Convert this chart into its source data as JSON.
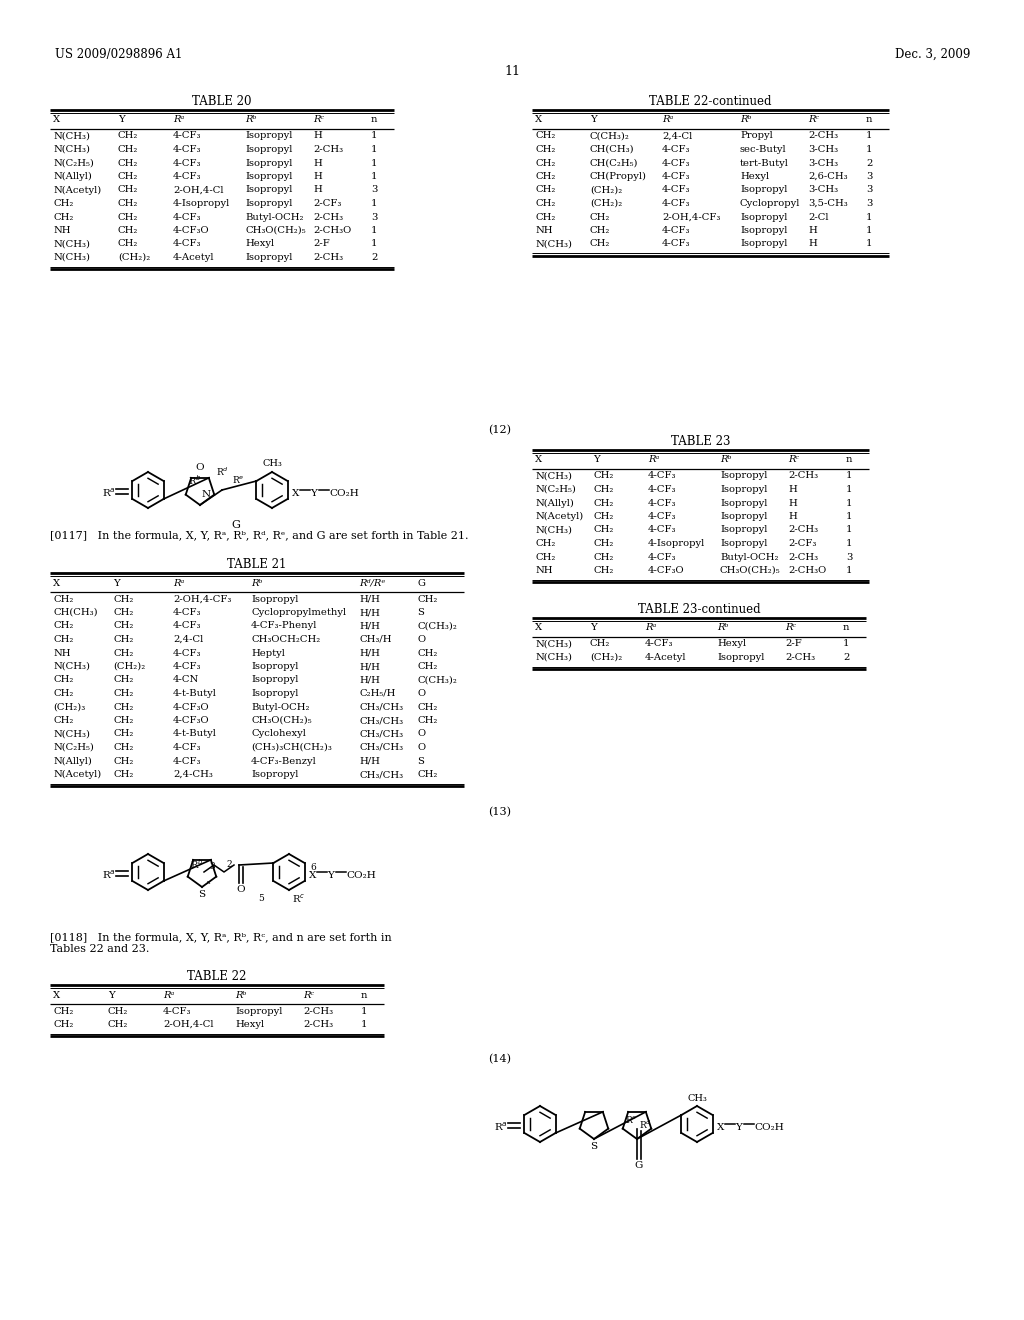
{
  "page_header_left": "US 2009/0298896 A1",
  "page_header_right": "Dec. 3, 2009",
  "page_number": "11",
  "background_color": "#ffffff",
  "table20_title": "TABLE 20",
  "table20_headers": [
    "X",
    "Y",
    "Rᵃ",
    "Rᵇ",
    "Rᶜ",
    "n"
  ],
  "table20_rows": [
    [
      "N(CH₃)",
      "CH₂",
      "4-CF₃",
      "Isopropyl",
      "H",
      "1"
    ],
    [
      "N(CH₃)",
      "CH₂",
      "4-CF₃",
      "Isopropyl",
      "2-CH₃",
      "1"
    ],
    [
      "N(C₂H₅)",
      "CH₂",
      "4-CF₃",
      "Isopropyl",
      "H",
      "1"
    ],
    [
      "N(Allyl)",
      "CH₂",
      "4-CF₃",
      "Isopropyl",
      "H",
      "1"
    ],
    [
      "N(Acetyl)",
      "CH₂",
      "2-OH,4-Cl",
      "Isopropyl",
      "H",
      "3"
    ],
    [
      "CH₂",
      "CH₂",
      "4-Isopropyl",
      "Isopropyl",
      "2-CF₃",
      "1"
    ],
    [
      "CH₂",
      "CH₂",
      "4-CF₃",
      "Butyl-OCH₂",
      "2-CH₃",
      "3"
    ],
    [
      "NH",
      "CH₂",
      "4-CF₃O",
      "CH₃O(CH₂)₅",
      "2-CH₃O",
      "1"
    ],
    [
      "N(CH₃)",
      "CH₂",
      "4-CF₃",
      "Hexyl",
      "2-F",
      "1"
    ],
    [
      "N(CH₃)",
      "(CH₂)₂",
      "4-Acetyl",
      "Isopropyl",
      "2-CH₃",
      "2"
    ]
  ],
  "table22cont_title": "TABLE 22-continued",
  "table22cont_headers": [
    "X",
    "Y",
    "Rᵃ",
    "Rᵇ",
    "Rᶜ",
    "n"
  ],
  "table22cont_rows": [
    [
      "CH₂",
      "C(CH₃)₂",
      "2,4-Cl",
      "Propyl",
      "2-CH₃",
      "1"
    ],
    [
      "CH₂",
      "CH(CH₃)",
      "4-CF₃",
      "sec-Butyl",
      "3-CH₃",
      "1"
    ],
    [
      "CH₂",
      "CH(C₂H₅)",
      "4-CF₃",
      "tert-Butyl",
      "3-CH₃",
      "2"
    ],
    [
      "CH₂",
      "CH(Propyl)",
      "4-CF₃",
      "Hexyl",
      "2,6-CH₃",
      "3"
    ],
    [
      "CH₂",
      "(CH₂)₂",
      "4-CF₃",
      "Isopropyl",
      "3-CH₃",
      "3"
    ],
    [
      "CH₂",
      "(CH₂)₂",
      "4-CF₃",
      "Cyclopropyl",
      "3,5-CH₃",
      "3"
    ],
    [
      "CH₂",
      "CH₂",
      "2-OH,4-CF₃",
      "Isopropyl",
      "2-Cl",
      "1"
    ],
    [
      "NH",
      "CH₂",
      "4-CF₃",
      "Isopropyl",
      "H",
      "1"
    ],
    [
      "N(CH₃)",
      "CH₂",
      "4-CF₃",
      "Isopropyl",
      "H",
      "1"
    ]
  ],
  "formula12_label": "(12)",
  "formula12_text": "[0117]   In the formula, X, Y, Rᵃ, Rᵇ, Rᵈ, Rᵉ, and G are set forth in Table 21.",
  "table21_title": "TABLE 21",
  "table21_headers": [
    "X",
    "Y",
    "Rᵃ",
    "Rᵇ",
    "Rᵈ/Rᵉ",
    "G"
  ],
  "table21_rows": [
    [
      "CH₂",
      "CH₂",
      "2-OH,4-CF₃",
      "Isopropyl",
      "H/H",
      "CH₂"
    ],
    [
      "CH(CH₃)",
      "CH₂",
      "4-CF₃",
      "Cyclopropylmethyl",
      "H/H",
      "S"
    ],
    [
      "CH₂",
      "CH₂",
      "4-CF₃",
      "4-CF₃-Phenyl",
      "H/H",
      "C(CH₃)₂"
    ],
    [
      "CH₂",
      "CH₂",
      "2,4-Cl",
      "CH₃OCH₂CH₂",
      "CH₃/H",
      "O"
    ],
    [
      "NH",
      "CH₂",
      "4-CF₃",
      "Heptyl",
      "H/H",
      "CH₂"
    ],
    [
      "N(CH₃)",
      "(CH₂)₂",
      "4-CF₃",
      "Isopropyl",
      "H/H",
      "CH₂"
    ],
    [
      "CH₂",
      "CH₂",
      "4-CN",
      "Isopropyl",
      "H/H",
      "C(CH₃)₂"
    ],
    [
      "CH₂",
      "CH₂",
      "4-t-Butyl",
      "Isopropyl",
      "C₂H₅/H",
      "O"
    ],
    [
      "(CH₂)₃",
      "CH₂",
      "4-CF₃O",
      "Butyl-OCH₂",
      "CH₃/CH₃",
      "CH₂"
    ],
    [
      "CH₂",
      "CH₂",
      "4-CF₃O",
      "CH₃O(CH₂)₅",
      "CH₃/CH₃",
      "CH₂"
    ],
    [
      "N(CH₃)",
      "CH₂",
      "4-t-Butyl",
      "Cyclohexyl",
      "CH₃/CH₃",
      "O"
    ],
    [
      "N(C₂H₅)",
      "CH₂",
      "4-CF₃",
      "(CH₃)₃CH(CH₂)₃",
      "CH₃/CH₃",
      "O"
    ],
    [
      "N(Allyl)",
      "CH₂",
      "4-CF₃",
      "4-CF₃-Benzyl",
      "H/H",
      "S"
    ],
    [
      "N(Acetyl)",
      "CH₂",
      "2,4-CH₃",
      "Isopropyl",
      "CH₃/CH₃",
      "CH₂"
    ]
  ],
  "table23_title": "TABLE 23",
  "table23_headers": [
    "X",
    "Y",
    "Rᵃ",
    "Rᵇ",
    "Rᶜ",
    "n"
  ],
  "table23_rows": [
    [
      "N(CH₃)",
      "CH₂",
      "4-CF₃",
      "Isopropyl",
      "2-CH₃",
      "1"
    ],
    [
      "N(C₂H₅)",
      "CH₂",
      "4-CF₃",
      "Isopropyl",
      "H",
      "1"
    ],
    [
      "N(Allyl)",
      "CH₂",
      "4-CF₃",
      "Isopropyl",
      "H",
      "1"
    ],
    [
      "N(Acetyl)",
      "CH₂",
      "4-CF₃",
      "Isopropyl",
      "H",
      "1"
    ],
    [
      "N(CH₃)",
      "CH₂",
      "4-CF₃",
      "Isopropyl",
      "2-CH₃",
      "1"
    ],
    [
      "CH₂",
      "CH₂",
      "4-Isopropyl",
      "Isopropyl",
      "2-CF₃",
      "1"
    ],
    [
      "CH₂",
      "CH₂",
      "4-CF₃",
      "Butyl-OCH₂",
      "2-CH₃",
      "3"
    ],
    [
      "NH",
      "CH₂",
      "4-CF₃O",
      "CH₃O(CH₂)₅",
      "2-CH₃O",
      "1"
    ]
  ],
  "formula13_label": "(13)",
  "formula13_text": "[0118]   In the formula, X, Y, Rᵃ, Rᵇ, Rᶜ, and n are set forth in\nTables 22 and 23.",
  "table22_title": "TABLE 22",
  "table22_headers": [
    "X",
    "Y",
    "Rᵃ",
    "Rᵇ",
    "Rᶜ",
    "n"
  ],
  "table22_rows": [
    [
      "CH₂",
      "CH₂",
      "4-CF₃",
      "Isopropyl",
      "2-CH₃",
      "1"
    ],
    [
      "CH₂",
      "CH₂",
      "2-OH,4-Cl",
      "Hexyl",
      "2-CH₃",
      "1"
    ]
  ],
  "table23cont_title": "TABLE 23-continued",
  "table23cont_headers": [
    "X",
    "Y",
    "Rᵃ",
    "Rᵇ",
    "Rᶜ",
    "n"
  ],
  "table23cont_rows": [
    [
      "N(CH₃)",
      "CH₂",
      "4-CF₃",
      "Hexyl",
      "2-F",
      "1"
    ],
    [
      "N(CH₃)",
      "(CH₂)₂",
      "4-Acetyl",
      "Isopropyl",
      "2-CH₃",
      "2"
    ]
  ],
  "formula14_label": "(14)"
}
